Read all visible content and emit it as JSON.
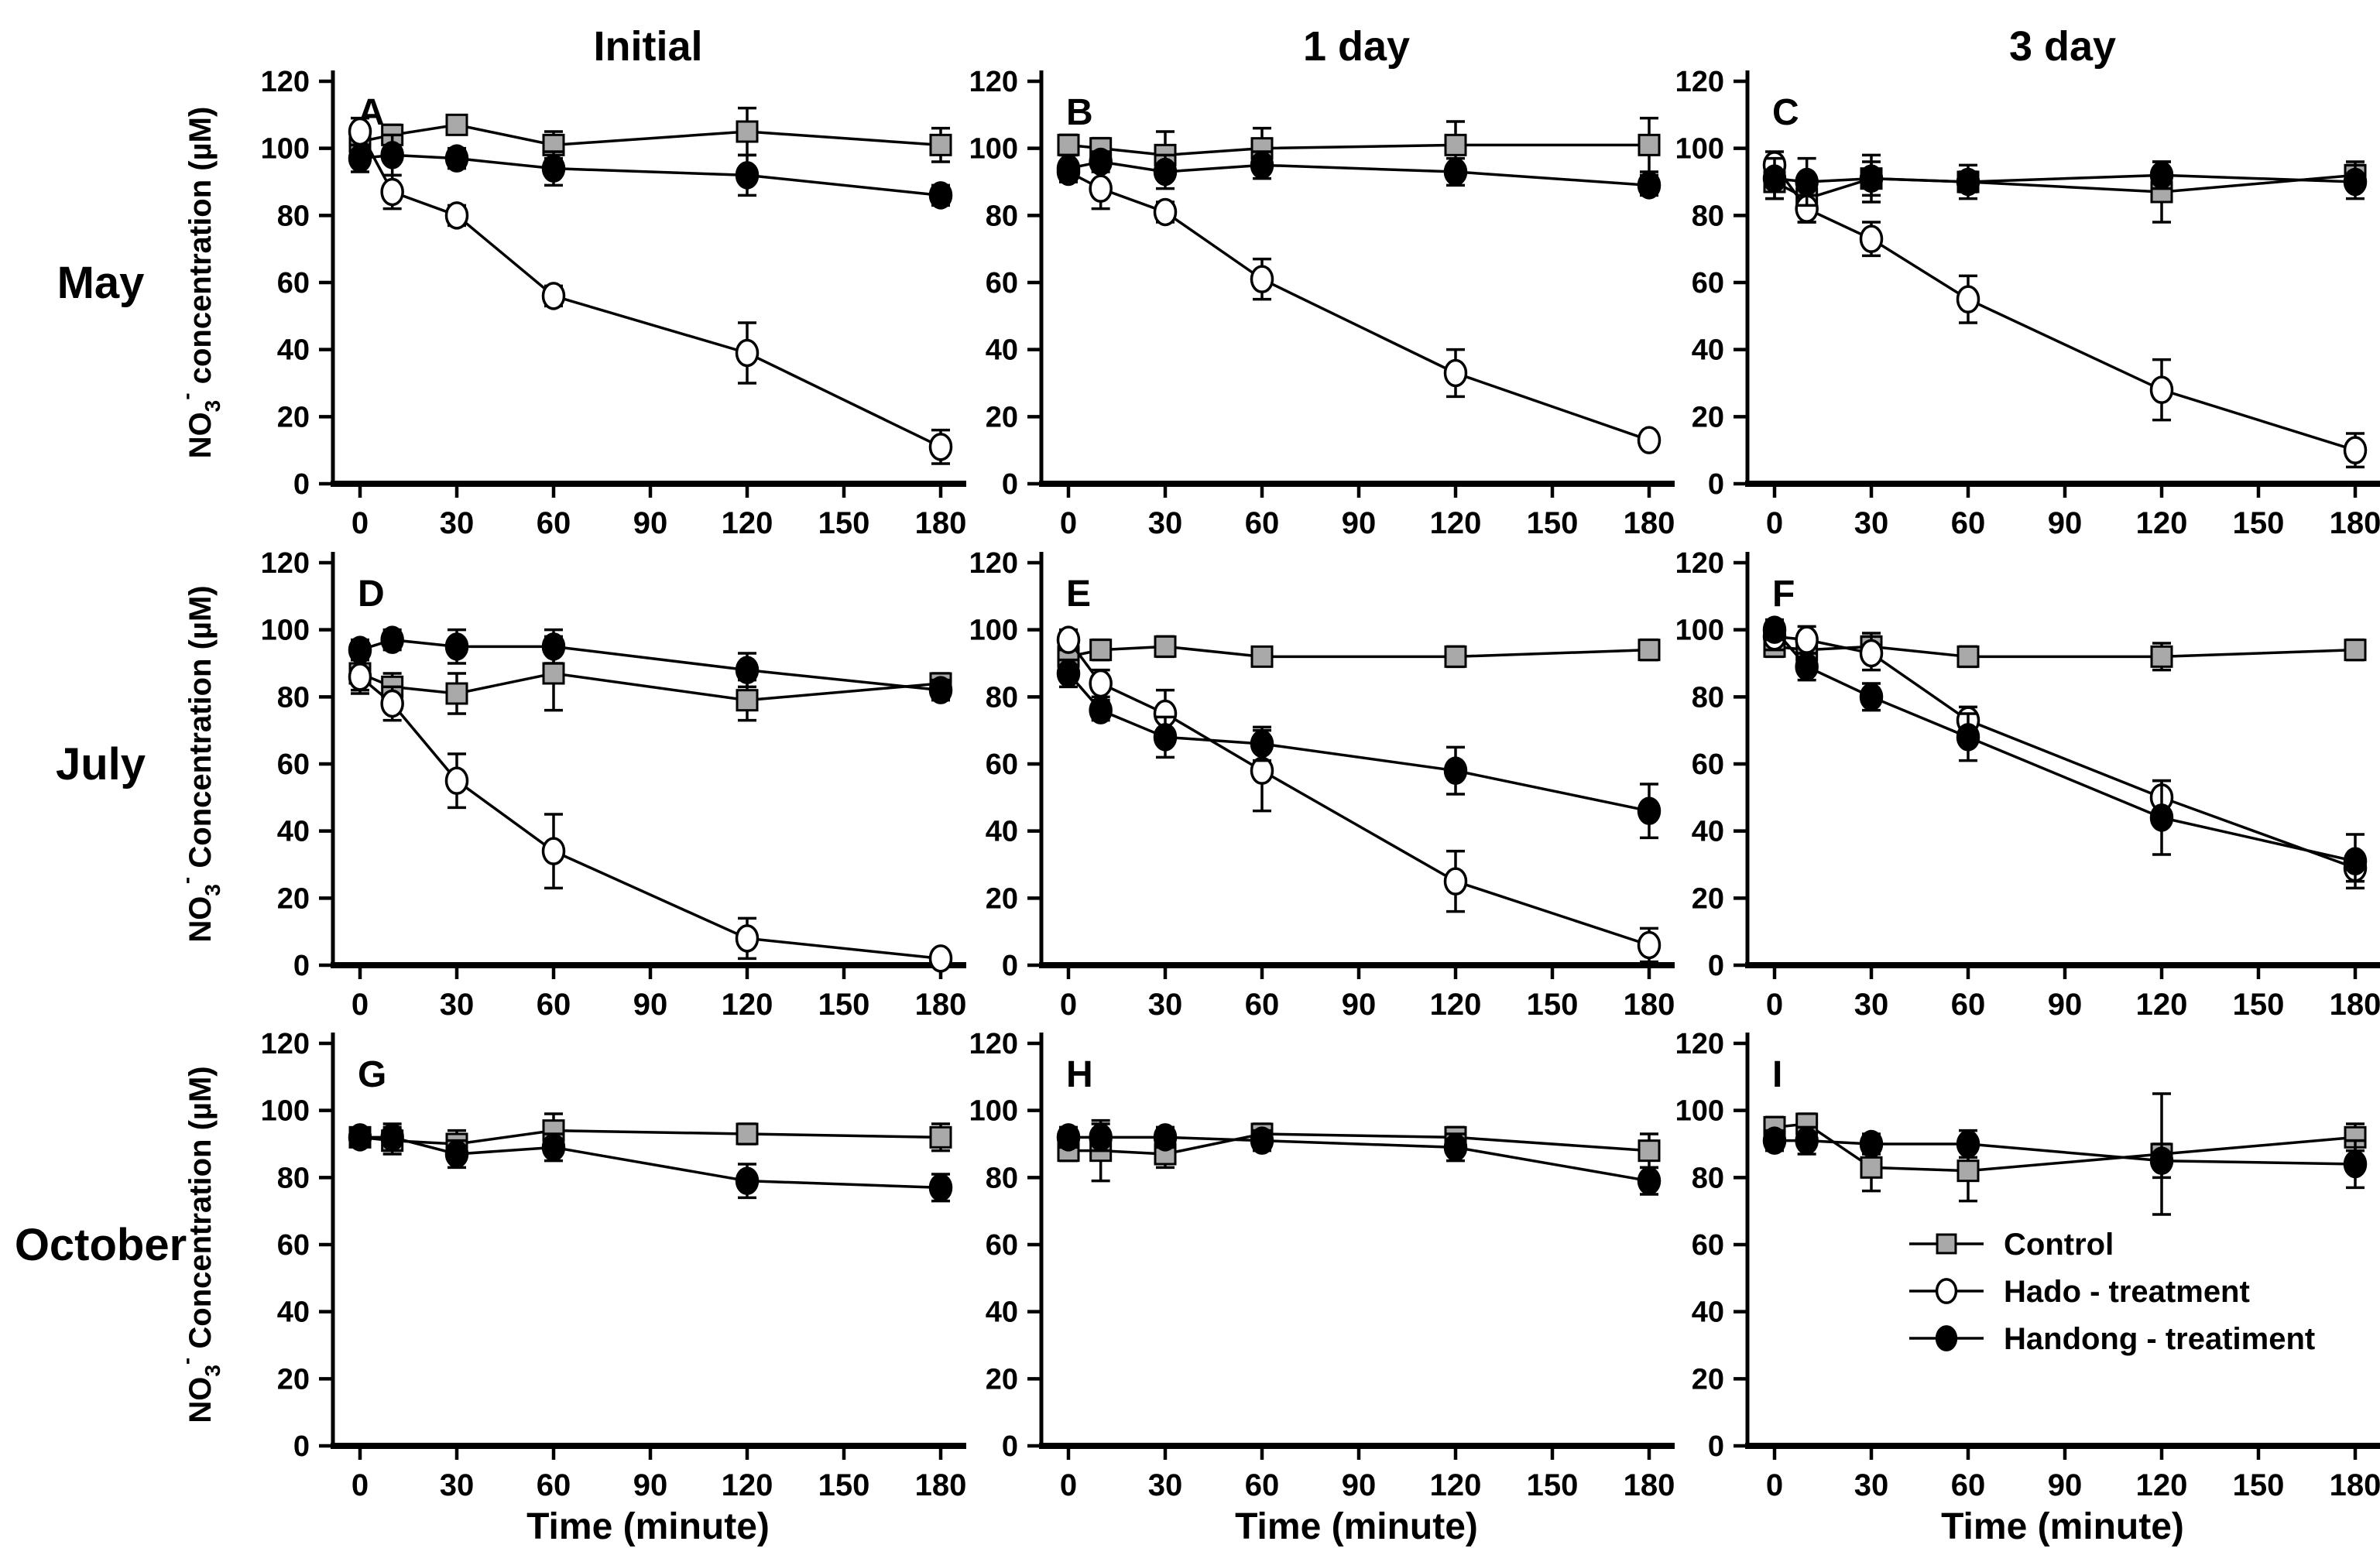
{
  "figure": {
    "column_titles": [
      "Initial",
      "1 day",
      "3 day"
    ],
    "row_labels": [
      "May",
      "July",
      "October"
    ],
    "x_axis_label": "Time (minute)",
    "y_axis_labels": [
      {
        "prefix": "NO",
        "sub": "3",
        "sup": "-",
        "rest": " concentration (µM)"
      },
      {
        "prefix": "NO",
        "sub": "3",
        "sup": "-",
        "rest": " Concentration (µM)"
      },
      {
        "prefix": "NO",
        "sub": "3",
        "sup": "-",
        "rest": " Concentration (µM)"
      }
    ]
  },
  "legend": {
    "items": [
      {
        "label": "Control",
        "marker": "square-gray"
      },
      {
        "label": "Hado - treatment",
        "marker": "circle-open"
      },
      {
        "label": "Handong - treatiment",
        "marker": "circle-filled"
      }
    ]
  },
  "colors": {
    "control_fill": "#a9a9a9",
    "line": "#000000",
    "open_fill": "#ffffff",
    "filled_fill": "#000000",
    "background": "#ffffff"
  },
  "axes": {
    "x_ticks": [
      0,
      30,
      60,
      90,
      120,
      150,
      180
    ],
    "y_ticks": [
      0,
      20,
      40,
      60,
      80,
      100,
      120
    ],
    "ylim": [
      0,
      120
    ],
    "xlim": [
      0,
      180
    ],
    "grid": false
  },
  "chart_data": [
    {
      "id": "A",
      "row": "May",
      "column": "Initial",
      "type": "line",
      "x": [
        0,
        10,
        30,
        60,
        120,
        180
      ],
      "series": [
        {
          "name": "Control",
          "marker": "square-gray",
          "values": [
            102,
            104,
            107,
            101,
            105,
            101
          ],
          "errors": [
            3,
            3,
            2,
            4,
            7,
            5
          ]
        },
        {
          "name": "Hado - treatment",
          "marker": "circle-open",
          "values": [
            105,
            87,
            80,
            56,
            39,
            11
          ],
          "errors": [
            4,
            5,
            3,
            3,
            9,
            5
          ]
        },
        {
          "name": "Handong - treatiment",
          "marker": "circle-filled",
          "values": [
            97,
            98,
            97,
            94,
            92,
            86
          ],
          "errors": [
            4,
            6,
            3,
            5,
            6,
            3
          ]
        }
      ],
      "legend_here": false
    },
    {
      "id": "B",
      "row": "May",
      "column": "1 day",
      "type": "line",
      "x": [
        0,
        10,
        30,
        60,
        120,
        180
      ],
      "series": [
        {
          "name": "Control",
          "marker": "square-gray",
          "values": [
            101,
            100,
            98,
            100,
            101,
            101
          ],
          "errors": [
            3,
            3,
            7,
            6,
            7,
            8
          ]
        },
        {
          "name": "Hado - treatment",
          "marker": "circle-open",
          "values": [
            93,
            88,
            81,
            61,
            33,
            13
          ],
          "errors": [
            3,
            6,
            3,
            6,
            7,
            2
          ]
        },
        {
          "name": "Handong - treatiment",
          "marker": "circle-filled",
          "values": [
            94,
            96,
            93,
            95,
            93,
            89
          ],
          "errors": [
            4,
            3,
            5,
            4,
            4,
            3
          ]
        }
      ],
      "legend_here": false
    },
    {
      "id": "C",
      "row": "May",
      "column": "3 day",
      "type": "line",
      "x": [
        0,
        10,
        30,
        60,
        120,
        180
      ],
      "series": [
        {
          "name": "Control",
          "marker": "square-gray",
          "values": [
            90,
            85,
            91,
            90,
            87,
            92
          ],
          "errors": [
            5,
            7,
            5,
            3,
            9,
            4
          ]
        },
        {
          "name": "Hado - treatment",
          "marker": "circle-open",
          "values": [
            95,
            82,
            73,
            55,
            28,
            10
          ],
          "errors": [
            4,
            4,
            5,
            7,
            9,
            5
          ]
        },
        {
          "name": "Handong - treatiment",
          "marker": "circle-filled",
          "values": [
            91,
            90,
            91,
            90,
            92,
            90
          ],
          "errors": [
            6,
            7,
            7,
            5,
            4,
            5
          ]
        }
      ],
      "legend_here": false
    },
    {
      "id": "D",
      "row": "July",
      "column": "Initial",
      "type": "line",
      "x": [
        0,
        10,
        30,
        60,
        120,
        180
      ],
      "series": [
        {
          "name": "Control",
          "marker": "square-gray",
          "values": [
            87,
            83,
            81,
            87,
            79,
            84
          ],
          "errors": [
            5,
            4,
            6,
            11,
            6,
            3
          ]
        },
        {
          "name": "Hado - treatment",
          "marker": "circle-open",
          "values": [
            86,
            78,
            55,
            34,
            8,
            2
          ],
          "errors": [
            5,
            5,
            8,
            11,
            6,
            2
          ]
        },
        {
          "name": "Handong - treatiment",
          "marker": "circle-filled",
          "values": [
            94,
            97,
            95,
            95,
            88,
            82
          ],
          "errors": [
            3,
            3,
            5,
            5,
            5,
            3
          ]
        }
      ],
      "legend_here": false
    },
    {
      "id": "E",
      "row": "July",
      "column": "1 day",
      "type": "line",
      "x": [
        0,
        10,
        30,
        60,
        120,
        180
      ],
      "series": [
        {
          "name": "Control",
          "marker": "square-gray",
          "values": [
            92,
            94,
            95,
            92,
            92,
            94
          ],
          "errors": [
            3,
            3,
            3,
            2,
            3,
            3
          ]
        },
        {
          "name": "Hado - treatment",
          "marker": "circle-open",
          "values": [
            97,
            84,
            75,
            58,
            25,
            6
          ],
          "errors": [
            3,
            4,
            7,
            12,
            9,
            5
          ]
        },
        {
          "name": "Handong - treatiment",
          "marker": "circle-filled",
          "values": [
            87,
            76,
            68,
            66,
            58,
            46
          ],
          "errors": [
            4,
            3,
            6,
            5,
            7,
            8
          ]
        }
      ],
      "legend_here": false
    },
    {
      "id": "F",
      "row": "July",
      "column": "3 day",
      "type": "line",
      "x": [
        0,
        10,
        30,
        60,
        120,
        180
      ],
      "series": [
        {
          "name": "Control",
          "marker": "square-gray",
          "values": [
            95,
            94,
            95,
            92,
            92,
            94
          ],
          "errors": [
            3,
            3,
            4,
            3,
            4,
            3
          ]
        },
        {
          "name": "Hado - treatment",
          "marker": "circle-open",
          "values": [
            98,
            97,
            93,
            73,
            50,
            29
          ],
          "errors": [
            4,
            4,
            5,
            4,
            5,
            4
          ]
        },
        {
          "name": "Handong - treatiment",
          "marker": "circle-filled",
          "values": [
            100,
            89,
            80,
            68,
            44,
            31
          ],
          "errors": [
            3,
            4,
            4,
            7,
            11,
            8
          ]
        }
      ],
      "legend_here": false
    },
    {
      "id": "G",
      "row": "October",
      "column": "Initial",
      "type": "line",
      "x": [
        0,
        10,
        30,
        60,
        120,
        180
      ],
      "series": [
        {
          "name": "Control",
          "marker": "square-gray",
          "values": [
            92,
            91,
            90,
            94,
            93,
            92
          ],
          "errors": [
            2,
            4,
            4,
            5,
            3,
            4
          ]
        },
        {
          "name": "Handong - treatiment",
          "marker": "circle-filled",
          "values": [
            92,
            92,
            87,
            89,
            79,
            77
          ],
          "errors": [
            2,
            4,
            4,
            4,
            5,
            4
          ]
        }
      ],
      "legend_here": false
    },
    {
      "id": "H",
      "row": "October",
      "column": "1 day",
      "type": "line",
      "x": [
        0,
        10,
        30,
        60,
        120,
        180
      ],
      "series": [
        {
          "name": "Control",
          "marker": "square-gray",
          "values": [
            88,
            88,
            87,
            93,
            92,
            88
          ],
          "errors": [
            3,
            9,
            4,
            3,
            3,
            5
          ]
        },
        {
          "name": "Handong - treatiment",
          "marker": "circle-filled",
          "values": [
            92,
            92,
            92,
            91,
            89,
            79
          ],
          "errors": [
            3,
            4,
            3,
            3,
            4,
            4
          ]
        }
      ],
      "legend_here": false
    },
    {
      "id": "I",
      "row": "October",
      "column": "3 day",
      "type": "line",
      "x": [
        0,
        10,
        30,
        60,
        120,
        180
      ],
      "series": [
        {
          "name": "Control",
          "marker": "square-gray",
          "values": [
            95,
            96,
            83,
            82,
            87,
            92
          ],
          "errors": [
            3,
            3,
            7,
            9,
            18,
            4
          ]
        },
        {
          "name": "Handong - treatiment",
          "marker": "circle-filled",
          "values": [
            91,
            91,
            90,
            90,
            85,
            84
          ],
          "errors": [
            3,
            4,
            3,
            4,
            5,
            7
          ]
        }
      ],
      "legend_here": true
    }
  ]
}
